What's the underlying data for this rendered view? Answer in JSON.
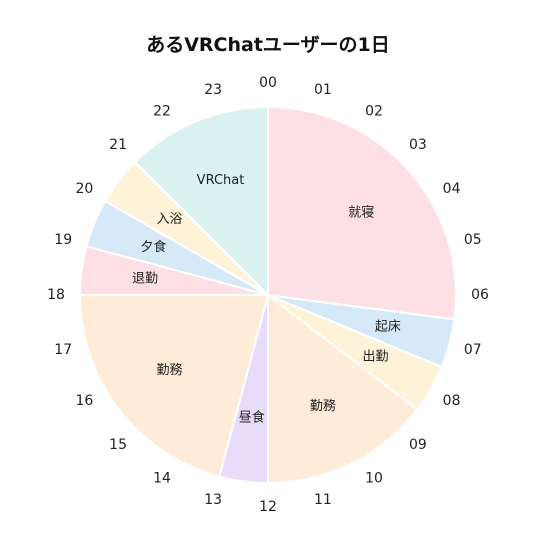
{
  "chart_data": {
    "type": "pie",
    "title": "あるVRChatユーザーの1日",
    "hour_labels": [
      "00",
      "01",
      "02",
      "03",
      "04",
      "05",
      "06",
      "07",
      "08",
      "09",
      "10",
      "11",
      "12",
      "13",
      "14",
      "15",
      "16",
      "17",
      "18",
      "19",
      "20",
      "21",
      "22",
      "23"
    ],
    "slices": [
      {
        "label": "就寝",
        "start_hour": 0,
        "end_hour": 6.5,
        "color": "#fde0e6"
      },
      {
        "label": "起床",
        "start_hour": 6.5,
        "end_hour": 7.5,
        "color": "#d5e9f8"
      },
      {
        "label": "出勤",
        "start_hour": 7.5,
        "end_hour": 8.5,
        "color": "#fef3d8"
      },
      {
        "label": "勤務",
        "start_hour": 8.5,
        "end_hour": 12,
        "color": "#feebd8"
      },
      {
        "label": "昼食",
        "start_hour": 12,
        "end_hour": 13,
        "color": "#e9dcfb"
      },
      {
        "label": "勤務",
        "start_hour": 13,
        "end_hour": 18,
        "color": "#feebd8"
      },
      {
        "label": "退勤",
        "start_hour": 18,
        "end_hour": 19,
        "color": "#fde0e6"
      },
      {
        "label": "夕食",
        "start_hour": 19,
        "end_hour": 20,
        "color": "#d5e9f8"
      },
      {
        "label": "入浴",
        "start_hour": 20,
        "end_hour": 21,
        "color": "#fef3d8"
      },
      {
        "label": "VRChat",
        "start_hour": 21,
        "end_hour": 24,
        "color": "#d9f1ef"
      }
    ]
  }
}
